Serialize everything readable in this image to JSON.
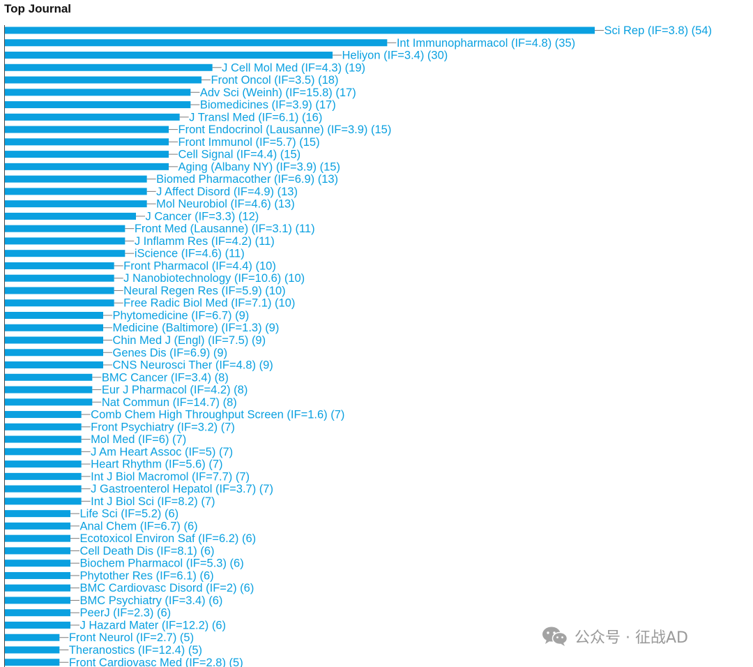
{
  "chart_data": {
    "type": "bar",
    "orientation": "horizontal",
    "title": "Top Journal",
    "bar_color": "#0aa0e0",
    "label_color": "#0aa0e0",
    "xlim": [
      0,
      54
    ],
    "categories": [
      "Sci Rep (IF=3.8)",
      "Int Immunopharmacol (IF=4.8)",
      "Heliyon (IF=3.4)",
      "J Cell Mol Med (IF=4.3)",
      "Front Oncol (IF=3.5)",
      "Adv Sci (Weinh) (IF=15.8)",
      "Biomedicines (IF=3.9)",
      "J Transl Med (IF=6.1)",
      "Front Endocrinol (Lausanne) (IF=3.9)",
      "Front Immunol (IF=5.7)",
      "Cell Signal (IF=4.4)",
      "Aging (Albany NY) (IF=3.9)",
      "Biomed Pharmacother (IF=6.9)",
      "J Affect Disord (IF=4.9)",
      "Mol Neurobiol (IF=4.6)",
      "J Cancer (IF=3.3)",
      "Front Med (Lausanne) (IF=3.1)",
      "J Inflamm Res (IF=4.2)",
      "iScience (IF=4.6)",
      "Front Pharmacol (IF=4.4)",
      "J Nanobiotechnology (IF=10.6)",
      "Neural Regen Res (IF=5.9)",
      "Free Radic Biol Med (IF=7.1)",
      "Phytomedicine (IF=6.7)",
      "Medicine (Baltimore) (IF=1.3)",
      "Chin Med J (Engl) (IF=7.5)",
      "Genes Dis (IF=6.9)",
      "CNS Neurosci Ther (IF=4.8)",
      "BMC Cancer (IF=3.4)",
      "Eur J Pharmacol (IF=4.2)",
      "Nat Commun (IF=14.7)",
      "Comb Chem High Throughput Screen (IF=1.6)",
      "Front Psychiatry (IF=3.2)",
      "Mol Med (IF=6)",
      "J Am Heart Assoc (IF=5)",
      "Heart Rhythm (IF=5.6)",
      "Int J Biol Macromol (IF=7.7)",
      "J Gastroenterol Hepatol (IF=3.7)",
      "Int J Biol Sci (IF=8.2)",
      "Life Sci (IF=5.2)",
      "Anal Chem (IF=6.7)",
      "Ecotoxicol Environ Saf (IF=6.2)",
      "Cell Death Dis (IF=8.1)",
      "Biochem Pharmacol (IF=5.3)",
      "Phytother Res (IF=6.1)",
      "BMC Cardiovasc Disord (IF=2)",
      "BMC Psychiatry (IF=3.4)",
      "PeerJ (IF=2.3)",
      "J Hazard Mater (IF=12.2)",
      "Front Neurol (IF=2.7)",
      "Theranostics (IF=12.4)",
      "Front Cardiovasc Med (IF=2.8)"
    ],
    "values": [
      54,
      35,
      30,
      19,
      18,
      17,
      17,
      16,
      15,
      15,
      15,
      15,
      13,
      13,
      13,
      12,
      11,
      11,
      11,
      10,
      10,
      10,
      10,
      9,
      9,
      9,
      9,
      9,
      8,
      8,
      8,
      7,
      7,
      7,
      7,
      7,
      7,
      7,
      7,
      6,
      6,
      6,
      6,
      6,
      6,
      6,
      6,
      6,
      6,
      5,
      5,
      5
    ]
  },
  "watermark": {
    "text": "公众号 · 征战AD",
    "icon": "wechat-icon",
    "color": "#9a9a9a"
  }
}
